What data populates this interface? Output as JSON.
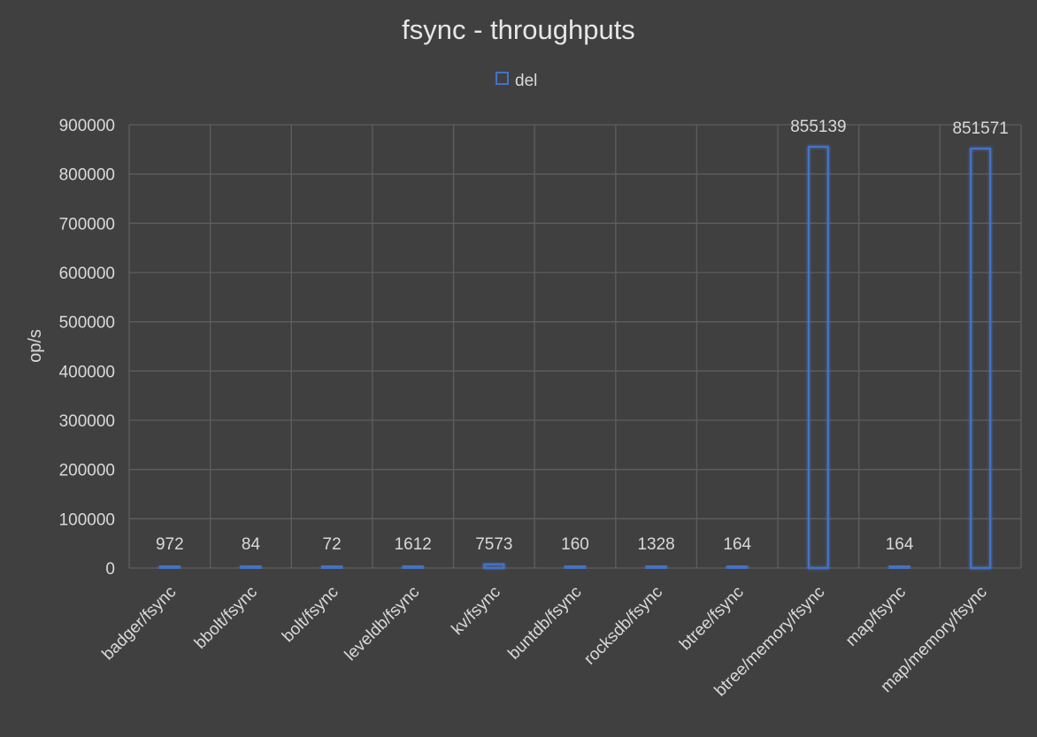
{
  "chart_data": {
    "type": "bar",
    "title": "fsync - throughputs",
    "ylabel": "op/s",
    "xlabel": "",
    "categories": [
      "badger/fsync",
      "bbolt/fsync",
      "bolt/fsync",
      "leveldb/fsync",
      "kv/fsync",
      "buntdb/fsync",
      "rocksdb/fsync",
      "btree/fsync",
      "btree/memory/fsync",
      "map/fsync",
      "map/memory/fsync"
    ],
    "series": [
      {
        "name": "del",
        "values": [
          972,
          84,
          72,
          1612,
          7573,
          160,
          1328,
          164,
          855139,
          164,
          851571
        ]
      }
    ],
    "ylim": [
      0,
      900000
    ],
    "yticks": [
      0,
      100000,
      200000,
      300000,
      400000,
      500000,
      600000,
      700000,
      800000,
      900000
    ],
    "grid": true,
    "legend_position": "top-center",
    "data_labels": true,
    "colors": {
      "background": "#404040",
      "bar_stroke": "#4472c4",
      "grid": "#5e5e5e",
      "text": "#d9d9d9"
    }
  }
}
